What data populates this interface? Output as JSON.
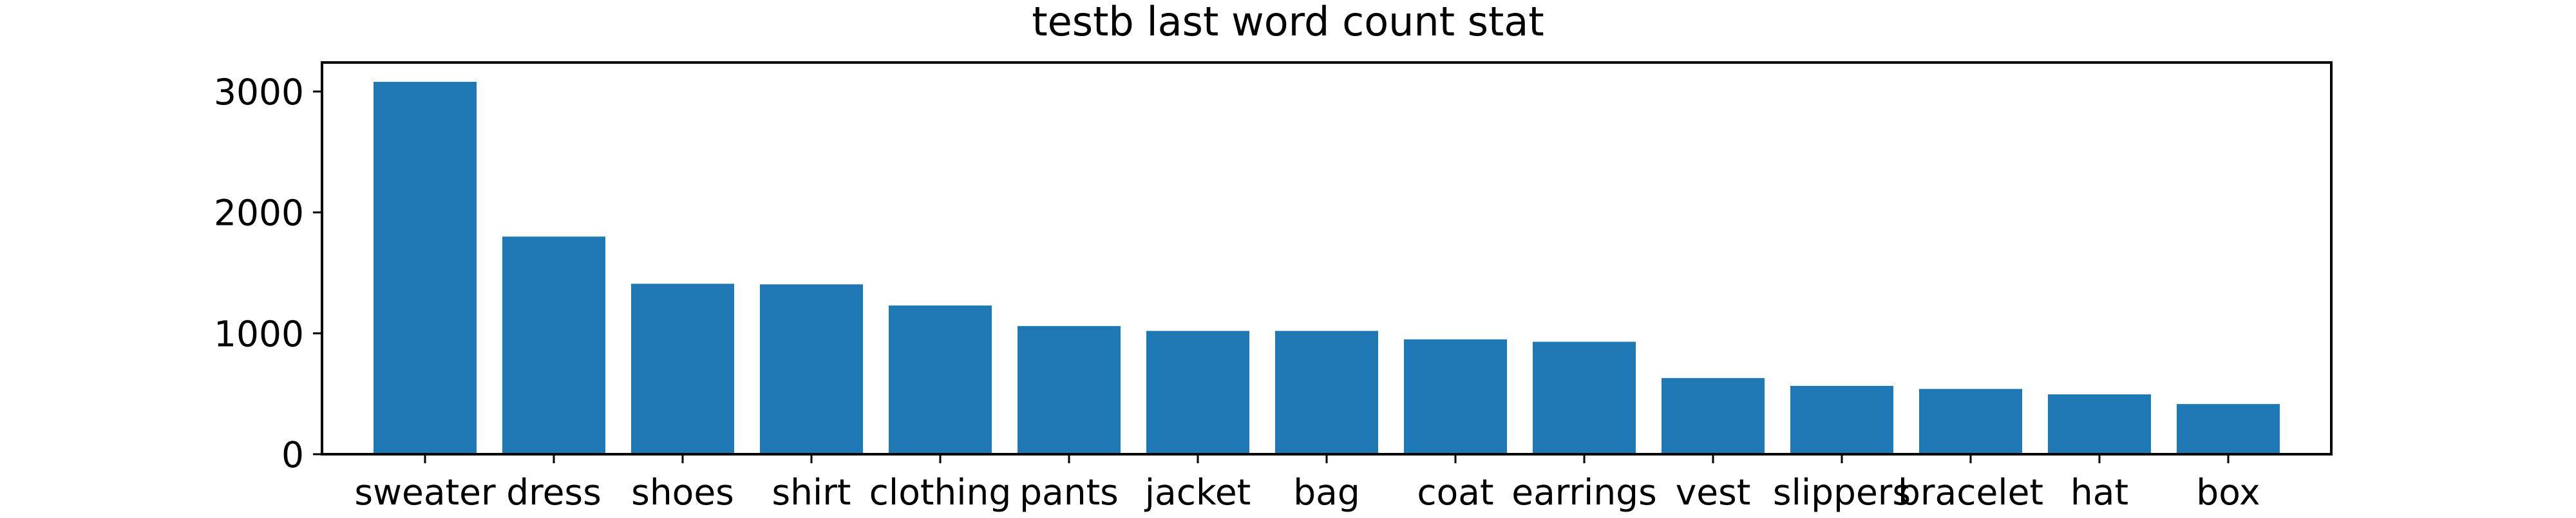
{
  "chart_data": {
    "type": "bar",
    "title": "testb last word count stat",
    "xlabel": "",
    "ylabel": "",
    "categories": [
      "sweater",
      "dress",
      "shoes",
      "shirt",
      "clothing",
      "pants",
      "jacket",
      "bag",
      "coat",
      "earrings",
      "vest",
      "slippers",
      "bracelet",
      "hat",
      "box"
    ],
    "values": [
      3080,
      1800,
      1410,
      1405,
      1230,
      1060,
      1020,
      1020,
      950,
      930,
      630,
      565,
      540,
      495,
      415
    ],
    "ylim": [
      0,
      3240
    ],
    "yticks": [
      0,
      1000,
      2000,
      3000
    ],
    "grid": false,
    "bar_color": "#1f77b4"
  }
}
